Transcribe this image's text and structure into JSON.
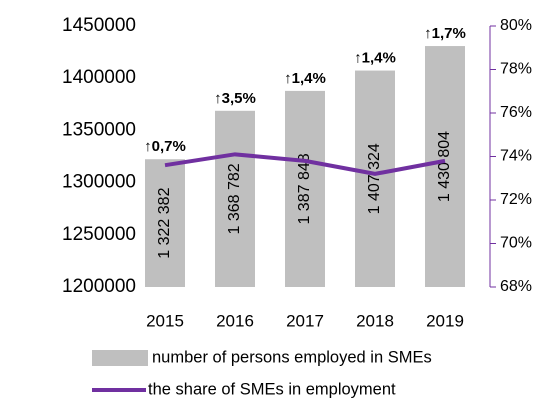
{
  "chart_data": {
    "type": "bar-line",
    "categories": [
      "2015",
      "2016",
      "2017",
      "2018",
      "2019"
    ],
    "series": [
      {
        "name": "number of persons employed in SMEs",
        "type": "bar",
        "color": "#bfbfbf",
        "values": [
          1322382,
          1368782,
          1387848,
          1407324,
          1430804
        ],
        "value_labels": [
          "1 322 382",
          "1 368 782",
          "1 387 848",
          "1 407 324",
          "1 430 804"
        ]
      },
      {
        "name": "the share of SMEs in employment",
        "type": "line",
        "color": "#7030a0",
        "axis": "y2",
        "values": [
          73.6,
          74.1,
          73.8,
          73.2,
          73.8
        ]
      }
    ],
    "annotations": [
      "↑0,7%",
      "↑3,5%",
      "↑1,4%",
      "↑1,4%",
      "↑1,7%"
    ],
    "ylim": [
      1200000,
      1450000
    ],
    "yticks": [
      1200000,
      1250000,
      1300000,
      1350000,
      1400000,
      1450000
    ],
    "y2lim": [
      68,
      80
    ],
    "y2ticks": [
      {
        "value": 68,
        "label": "68%"
      },
      {
        "value": 70,
        "label": "70%"
      },
      {
        "value": 72,
        "label": "72%"
      },
      {
        "value": 74,
        "label": "74%"
      },
      {
        "value": 76,
        "label": "76%"
      },
      {
        "value": 78,
        "label": "78%"
      },
      {
        "value": 80,
        "label": "80%"
      }
    ],
    "y2color": "#7030a0"
  }
}
